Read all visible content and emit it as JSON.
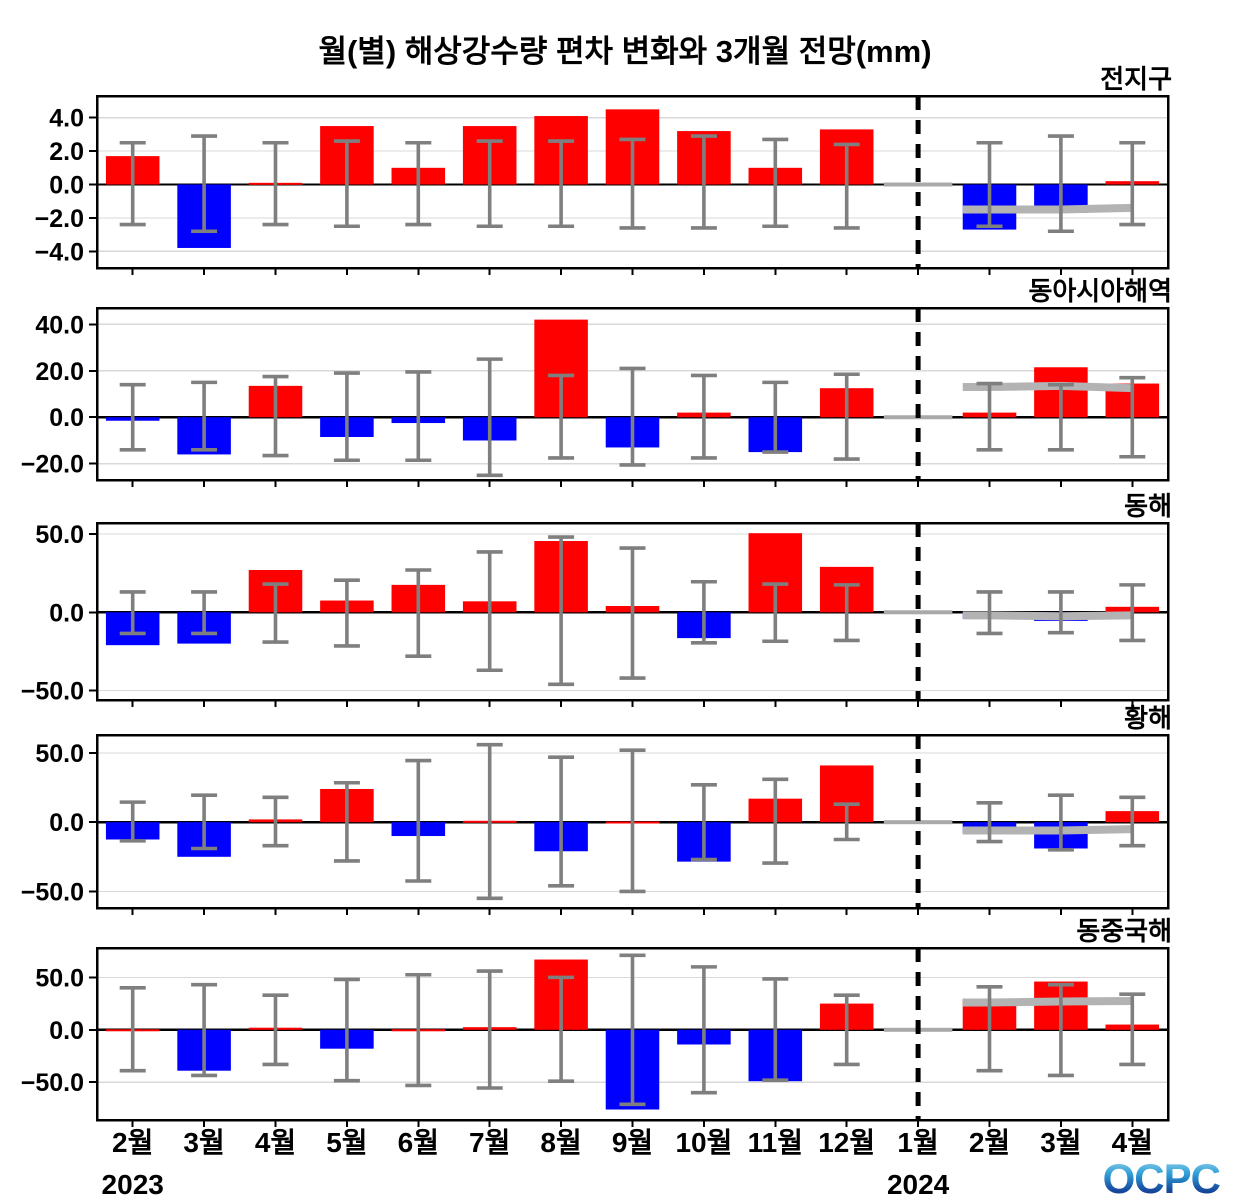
{
  "title": "월(별) 해상강수량 편차 변화와 3개월 전망(mm)",
  "logo": {
    "text": "OCPC"
  },
  "colors": {
    "positive_bar": "#ff0000",
    "negative_bar": "#0000ff",
    "error_bar": "#7f7f7f",
    "forecast_mean_line": "#b3b3b3",
    "jan_baseline": "#a9a9a9",
    "grid_line": "#d9d9d9",
    "frame": "#000000",
    "zero_line": "#000000",
    "divider": "#000000",
    "logo_gradient": [
      "#a8dcef",
      "#2f9fd6",
      "#174a9e",
      "#122a66"
    ]
  },
  "x_axis": {
    "months": [
      "2월",
      "3월",
      "4월",
      "5월",
      "6월",
      "7월",
      "8월",
      "9월",
      "10월",
      "11월",
      "12월",
      "1월",
      "2월",
      "3월",
      "4월"
    ],
    "year_left": {
      "label": "2023",
      "month_index": 0
    },
    "year_right": {
      "label": "2024",
      "month_index": 11
    },
    "divider_month_index": 11,
    "forecast_month_indices": [
      12,
      13,
      14
    ]
  },
  "chart_data": [
    {
      "type": "bar",
      "title": "전지구",
      "categories": [
        "2월",
        "3월",
        "4월",
        "5월",
        "6월",
        "7월",
        "8월",
        "9월",
        "10월",
        "11월",
        "12월",
        "1월",
        "2월",
        "3월",
        "4월"
      ],
      "values": [
        1.7,
        -3.8,
        0.1,
        3.5,
        1.0,
        3.5,
        4.1,
        4.5,
        3.2,
        1.0,
        3.3,
        0,
        -2.7,
        -1.7,
        0.2
      ],
      "error_high": [
        2.5,
        2.9,
        2.5,
        2.6,
        2.5,
        2.6,
        2.6,
        2.7,
        2.9,
        2.7,
        2.4,
        null,
        2.5,
        2.9,
        2.5
      ],
      "error_low": [
        -2.4,
        -2.8,
        -2.4,
        -2.5,
        -2.4,
        -2.5,
        -2.5,
        -2.6,
        -2.6,
        -2.5,
        -2.6,
        null,
        -2.5,
        -2.8,
        -2.4
      ],
      "forecast_mean": [
        -1.5,
        -1.5,
        -1.4
      ],
      "jan_baseline_value": 0,
      "ylim": [
        -5.0,
        5.3
      ],
      "yticks": [
        4.0,
        2.0,
        0.0,
        -2.0,
        -4.0
      ],
      "grid": true,
      "legend": "none"
    },
    {
      "type": "bar",
      "title": "동아시아해역",
      "categories": [
        "2월",
        "3월",
        "4월",
        "5월",
        "6월",
        "7월",
        "8월",
        "9월",
        "10월",
        "11월",
        "12월",
        "1월",
        "2월",
        "3월",
        "4월"
      ],
      "values": [
        -1.5,
        -16,
        13.5,
        -8.5,
        -2.5,
        -10,
        42,
        -13,
        2,
        -15,
        12.5,
        0,
        2,
        21.5,
        14.5
      ],
      "error_high": [
        14,
        15,
        17.5,
        19,
        19.5,
        25,
        18,
        21,
        18,
        15,
        18.5,
        null,
        14.5,
        14,
        17
      ],
      "error_low": [
        -14,
        -14,
        -16.5,
        -18.5,
        -18.5,
        -25,
        -17.5,
        -20.5,
        -17.5,
        -15,
        -18,
        null,
        -14,
        -14,
        -17
      ],
      "forecast_mean": [
        13,
        13.5,
        12.5
      ],
      "jan_baseline_value": 0,
      "ylim": [
        -27,
        47
      ],
      "yticks": [
        40.0,
        20.0,
        0.0,
        -20.0
      ],
      "grid": true,
      "legend": "none"
    },
    {
      "type": "bar",
      "title": "동해",
      "categories": [
        "2월",
        "3월",
        "4월",
        "5월",
        "6월",
        "7월",
        "8월",
        "9월",
        "10월",
        "11월",
        "12월",
        "1월",
        "2월",
        "3월",
        "4월"
      ],
      "values": [
        -21,
        -20,
        27,
        7.5,
        17.5,
        7,
        45.5,
        4,
        -16.5,
        50.5,
        29,
        0,
        -4,
        -5.5,
        3.5
      ],
      "error_high": [
        13,
        13,
        18,
        20.5,
        27,
        38.5,
        48,
        41,
        19.5,
        18,
        17.5,
        null,
        13,
        13,
        17.5
      ],
      "error_low": [
        -13.5,
        -13.5,
        -19,
        -21.5,
        -28,
        -37,
        -46,
        -42,
        -19.5,
        -18.5,
        -18,
        null,
        -13.5,
        -13,
        -18
      ],
      "forecast_mean": [
        -2,
        -2.5,
        -2
      ],
      "jan_baseline_value": 0,
      "ylim": [
        -56,
        57
      ],
      "yticks": [
        50.0,
        0.0,
        -50.0
      ],
      "grid": true,
      "legend": "none"
    },
    {
      "type": "bar",
      "title": "황해",
      "categories": [
        "2월",
        "3월",
        "4월",
        "5월",
        "6월",
        "7월",
        "8월",
        "9월",
        "10월",
        "11월",
        "12월",
        "1월",
        "2월",
        "3월",
        "4월"
      ],
      "values": [
        -12.5,
        -25,
        2,
        24,
        -10,
        1,
        -21,
        0.5,
        -28.5,
        17,
        41,
        0,
        -8,
        -19,
        8
      ],
      "error_high": [
        14.5,
        19.5,
        18,
        28.5,
        44.5,
        56,
        47,
        52,
        27,
        31,
        13,
        null,
        14,
        19.5,
        18
      ],
      "error_low": [
        -13.5,
        -19,
        -17,
        -28,
        -42.5,
        -55,
        -46,
        -50,
        -27,
        -29.5,
        -12.5,
        null,
        -14,
        -20,
        -17
      ],
      "forecast_mean": [
        -6,
        -6,
        -5
      ],
      "jan_baseline_value": 0,
      "ylim": [
        -62,
        63
      ],
      "yticks": [
        50.0,
        0.0,
        -50.0
      ],
      "grid": true,
      "legend": "none"
    },
    {
      "type": "bar",
      "title": "동중국해",
      "categories": [
        "2월",
        "3월",
        "4월",
        "5월",
        "6월",
        "7월",
        "8월",
        "9월",
        "10월",
        "11월",
        "12월",
        "1월",
        "2월",
        "3월",
        "4월"
      ],
      "values": [
        0.5,
        -39,
        2,
        -18,
        0.5,
        2.5,
        67,
        -76,
        -14,
        -49,
        25,
        0,
        29.5,
        46,
        5
      ],
      "error_high": [
        40,
        43,
        33,
        48,
        52.5,
        56,
        50,
        71,
        60,
        48.5,
        33,
        null,
        41,
        43,
        34
      ],
      "error_low": [
        -39,
        -43.5,
        -33,
        -48.5,
        -53,
        -55.5,
        -49,
        -71,
        -60,
        -48,
        -33,
        null,
        -39,
        -43.5,
        -33
      ],
      "forecast_mean": [
        26,
        27,
        27.5
      ],
      "jan_baseline_value": 0,
      "ylim": [
        -86,
        78
      ],
      "yticks": [
        50.0,
        0.0,
        -50.0
      ],
      "grid": true,
      "legend": "none"
    }
  ]
}
